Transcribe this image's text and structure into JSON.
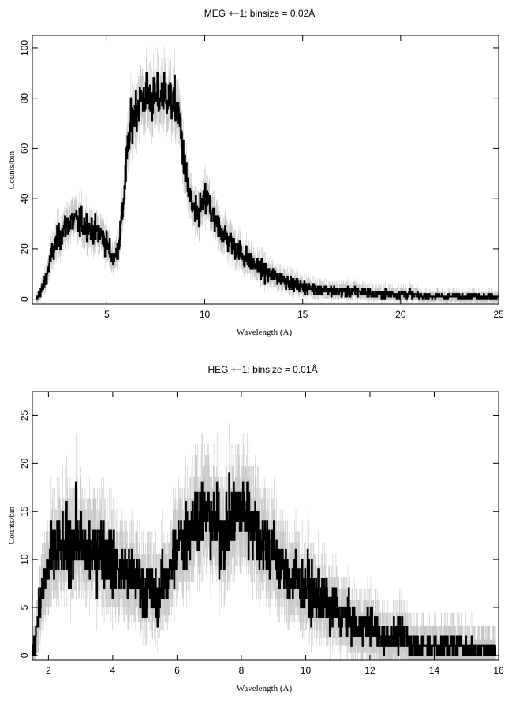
{
  "chart_data": [
    {
      "type": "line",
      "title": "MEG +−1; binsize = 0.02Å",
      "xlabel": "Wavelength (Å)",
      "ylabel": "Counts/bin",
      "xlim": [
        1.2,
        25.0
      ],
      "ylim": [
        -2,
        105
      ],
      "xticks": [
        5,
        10,
        15,
        20,
        25
      ],
      "yticks": [
        0,
        20,
        40,
        60,
        80,
        100
      ],
      "grid": false,
      "series": [
        {
          "color": "#000000",
          "error_color": "#c8c8c8",
          "x": [
            1.4,
            1.6,
            1.8,
            2.0,
            2.2,
            2.4,
            2.6,
            2.8,
            3.0,
            3.2,
            3.4,
            3.6,
            3.8,
            4.0,
            4.2,
            4.4,
            4.6,
            4.8,
            5.0,
            5.2,
            5.4,
            5.6,
            5.8,
            6.0,
            6.2,
            6.4,
            6.6,
            6.8,
            7.0,
            7.2,
            7.4,
            7.6,
            7.8,
            8.0,
            8.2,
            8.4,
            8.6,
            8.8,
            9.0,
            9.2,
            9.4,
            9.6,
            9.8,
            10.0,
            10.2,
            10.5,
            11.0,
            11.5,
            12.0,
            12.5,
            13.0,
            13.5,
            14.0,
            14.5,
            15.0,
            15.5,
            16.0,
            16.5,
            17.0,
            17.5,
            18.0,
            18.5,
            19.0,
            19.5,
            20.0,
            20.5,
            21.0,
            21.5,
            22.0,
            22.5,
            23.0,
            23.5,
            24.0,
            24.5,
            25.0
          ],
          "y": [
            0,
            3,
            6,
            12,
            18,
            22,
            25,
            28,
            30,
            31,
            31,
            30,
            30,
            29,
            28,
            27,
            26,
            25,
            22,
            18,
            16,
            22,
            35,
            55,
            68,
            74,
            78,
            80,
            81,
            80,
            79,
            80,
            81,
            82,
            80,
            78,
            76,
            65,
            50,
            42,
            35,
            33,
            36,
            40,
            38,
            30,
            26,
            21,
            17,
            14,
            11,
            9,
            8,
            6,
            5,
            4,
            4,
            3,
            3,
            3,
            3,
            2,
            2,
            2,
            2,
            2,
            1,
            1,
            1,
            1,
            1,
            1,
            1,
            1,
            1
          ]
        }
      ]
    },
    {
      "type": "line",
      "title": "HEG +−1; binsize = 0.01Å",
      "xlabel": "Wavelength (Å)",
      "ylabel": "Counts/bin",
      "xlim": [
        1.5,
        16.0
      ],
      "ylim": [
        -0.5,
        27.5
      ],
      "xticks": [
        2,
        4,
        6,
        8,
        10,
        12,
        14,
        16
      ],
      "yticks": [
        0,
        5,
        10,
        15,
        20,
        25
      ],
      "grid": false,
      "series": [
        {
          "color": "#000000",
          "error_color": "#c8c8c8",
          "x": [
            1.5,
            1.7,
            1.9,
            2.1,
            2.3,
            2.5,
            2.7,
            2.9,
            3.1,
            3.3,
            3.5,
            3.7,
            3.9,
            4.1,
            4.3,
            4.5,
            4.7,
            4.9,
            5.1,
            5.3,
            5.5,
            5.7,
            5.9,
            6.1,
            6.3,
            6.5,
            6.7,
            6.9,
            7.1,
            7.3,
            7.5,
            7.7,
            7.9,
            8.1,
            8.3,
            8.5,
            8.7,
            8.9,
            9.1,
            9.3,
            9.5,
            9.7,
            9.9,
            10.1,
            10.3,
            10.5,
            10.7,
            10.9,
            11.1,
            11.3,
            11.5,
            11.7,
            11.9,
            12.1,
            12.3,
            12.5,
            12.7,
            12.9,
            13.1,
            13.3,
            13.5,
            13.7,
            13.9,
            14.1,
            14.3,
            14.5,
            14.7,
            14.9,
            15.1,
            15.3,
            15.5,
            15.7,
            15.9
          ],
          "y": [
            0,
            5,
            8,
            10,
            11,
            11,
            12,
            12,
            11,
            11,
            11,
            11,
            10,
            9,
            9,
            8,
            8,
            7,
            7,
            6,
            7,
            8,
            10,
            12,
            13,
            14,
            15,
            15,
            14,
            13,
            13,
            14,
            15,
            15,
            14,
            13,
            12,
            11,
            10,
            9,
            8,
            8,
            7,
            7,
            6,
            6,
            5,
            5,
            4,
            4,
            3,
            3,
            3,
            3,
            2,
            2,
            2,
            2,
            2,
            1,
            1,
            1,
            1,
            1,
            1,
            1,
            1,
            1,
            0.5,
            0.5,
            0.5,
            0.5,
            0.5
          ]
        }
      ]
    }
  ]
}
